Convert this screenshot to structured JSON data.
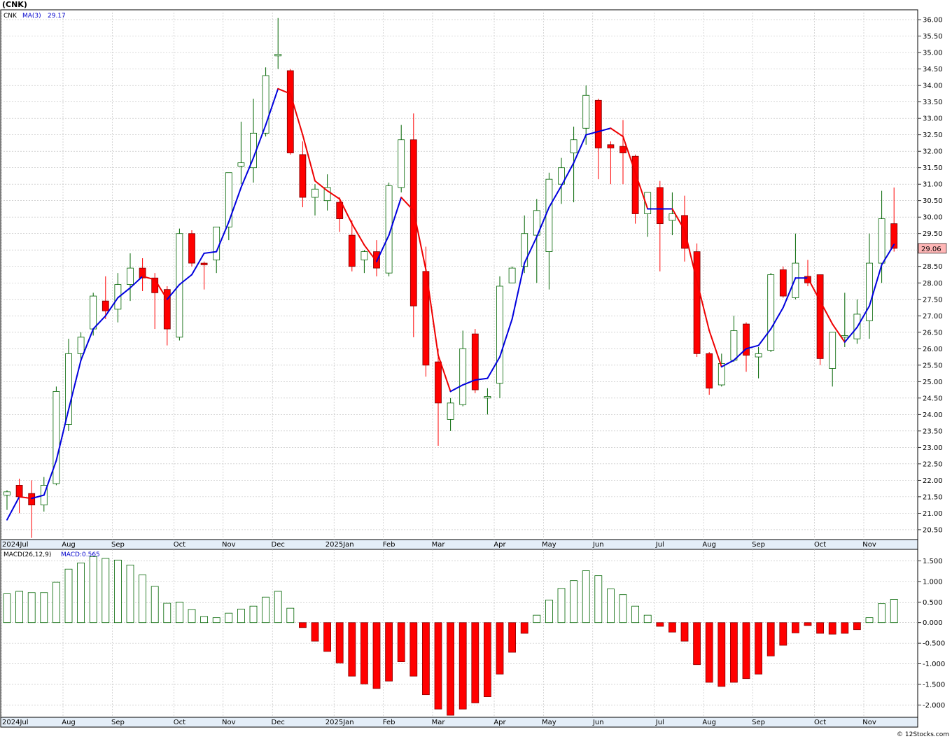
{
  "title": "(CNK)",
  "legend": {
    "symbol": "CNK",
    "ma_label": "MA(3)",
    "ma_value": "29.17",
    "macd_label": "MACD(26,12,9)",
    "macd_value_label": "MACD:0.565"
  },
  "last_price_label": "29.06",
  "footer": "© 12Stocks.com",
  "colors": {
    "up": "#006400",
    "down": "#ff0000",
    "ma_up": "#0000dd",
    "ma_down": "#ee0000",
    "price_tag_bg": "#ffb6b6",
    "grid": "#bbbbbb",
    "axis": "#000000"
  },
  "chart_data": [
    {
      "type": "candlestick",
      "grid": true,
      "y_axis": "right",
      "ylim": [
        20.2,
        36.3
      ],
      "y_ticks": [
        "36.00",
        "35.50",
        "35.00",
        "34.50",
        "34.00",
        "33.50",
        "33.00",
        "32.50",
        "32.00",
        "31.50",
        "31.00",
        "30.50",
        "30.00",
        "29.50",
        "29.00",
        "28.50",
        "28.00",
        "27.50",
        "27.00",
        "26.50",
        "26.00",
        "25.50",
        "25.00",
        "24.50",
        "24.00",
        "23.50",
        "23.00",
        "22.50",
        "22.00",
        "21.50",
        "21.00",
        "20.50"
      ],
      "x_labels": [
        {
          "i": 0,
          "label": "2024Jul"
        },
        {
          "i": 5,
          "label": "Aug"
        },
        {
          "i": 9,
          "label": "Sep"
        },
        {
          "i": 14,
          "label": "Oct"
        },
        {
          "i": 18,
          "label": "Nov"
        },
        {
          "i": 22,
          "label": "Dec"
        },
        {
          "i": 27,
          "label": "2025Jan"
        },
        {
          "i": 31,
          "label": "Feb"
        },
        {
          "i": 35,
          "label": "Mar"
        },
        {
          "i": 40,
          "label": "Apr"
        },
        {
          "i": 44,
          "label": "May"
        },
        {
          "i": 48,
          "label": "Jun"
        },
        {
          "i": 53,
          "label": "Jul"
        },
        {
          "i": 57,
          "label": "Aug"
        },
        {
          "i": 61,
          "label": "Sep"
        },
        {
          "i": 66,
          "label": "Oct"
        },
        {
          "i": 70,
          "label": "Nov"
        }
      ],
      "candles": [
        {
          "o": 21.55,
          "h": 21.7,
          "l": 21.1,
          "c": 21.65
        },
        {
          "o": 21.85,
          "h": 22.05,
          "l": 21.0,
          "c": 21.5
        },
        {
          "o": 21.6,
          "h": 22.0,
          "l": 20.25,
          "c": 21.25
        },
        {
          "o": 21.25,
          "h": 22.1,
          "l": 21.05,
          "c": 21.85
        },
        {
          "o": 21.9,
          "h": 24.85,
          "l": 21.85,
          "c": 24.7
        },
        {
          "o": 23.7,
          "h": 26.3,
          "l": 23.5,
          "c": 25.85
        },
        {
          "o": 25.85,
          "h": 26.5,
          "l": 25.65,
          "c": 26.35
        },
        {
          "o": 26.6,
          "h": 27.7,
          "l": 26.4,
          "c": 27.6
        },
        {
          "o": 27.45,
          "h": 28.2,
          "l": 26.9,
          "c": 27.15
        },
        {
          "o": 27.2,
          "h": 28.3,
          "l": 26.8,
          "c": 27.95
        },
        {
          "o": 27.95,
          "h": 28.9,
          "l": 27.45,
          "c": 28.45
        },
        {
          "o": 28.45,
          "h": 28.75,
          "l": 27.75,
          "c": 28.15
        },
        {
          "o": 28.15,
          "h": 28.3,
          "l": 26.6,
          "c": 27.7
        },
        {
          "o": 27.8,
          "h": 27.9,
          "l": 26.1,
          "c": 26.6
        },
        {
          "o": 26.35,
          "h": 29.65,
          "l": 26.25,
          "c": 29.5
        },
        {
          "o": 29.5,
          "h": 29.6,
          "l": 28.5,
          "c": 28.6
        },
        {
          "o": 28.6,
          "h": 28.65,
          "l": 27.8,
          "c": 28.55
        },
        {
          "o": 28.7,
          "h": 29.55,
          "l": 28.3,
          "c": 29.7
        },
        {
          "o": 29.7,
          "h": 31.3,
          "l": 29.3,
          "c": 31.35
        },
        {
          "o": 31.55,
          "h": 32.9,
          "l": 31.0,
          "c": 31.65
        },
        {
          "o": 31.5,
          "h": 33.6,
          "l": 31.05,
          "c": 32.55
        },
        {
          "o": 32.55,
          "h": 34.55,
          "l": 32.45,
          "c": 34.3
        },
        {
          "o": 34.9,
          "h": 36.05,
          "l": 34.5,
          "c": 34.95
        },
        {
          "o": 34.45,
          "h": 34.5,
          "l": 31.9,
          "c": 31.95
        },
        {
          "o": 31.9,
          "h": 32.3,
          "l": 30.3,
          "c": 30.6
        },
        {
          "o": 30.6,
          "h": 31.0,
          "l": 30.05,
          "c": 30.85
        },
        {
          "o": 30.5,
          "h": 31.3,
          "l": 30.2,
          "c": 30.9
        },
        {
          "o": 30.45,
          "h": 30.6,
          "l": 29.55,
          "c": 29.95
        },
        {
          "o": 29.45,
          "h": 29.9,
          "l": 28.35,
          "c": 28.5
        },
        {
          "o": 28.7,
          "h": 29.0,
          "l": 28.3,
          "c": 28.95
        },
        {
          "o": 28.95,
          "h": 29.3,
          "l": 28.2,
          "c": 28.45
        },
        {
          "o": 28.3,
          "h": 31.05,
          "l": 28.2,
          "c": 30.95
        },
        {
          "o": 30.9,
          "h": 32.8,
          "l": 30.75,
          "c": 32.35
        },
        {
          "o": 32.35,
          "h": 33.15,
          "l": 26.35,
          "c": 27.3
        },
        {
          "o": 28.35,
          "h": 29.1,
          "l": 25.15,
          "c": 25.5
        },
        {
          "o": 25.6,
          "h": 26.0,
          "l": 23.05,
          "c": 24.35
        },
        {
          "o": 23.85,
          "h": 24.5,
          "l": 23.5,
          "c": 24.35
        },
        {
          "o": 24.3,
          "h": 26.55,
          "l": 24.25,
          "c": 26.0
        },
        {
          "o": 26.45,
          "h": 26.6,
          "l": 24.65,
          "c": 24.75
        },
        {
          "o": 24.5,
          "h": 24.8,
          "l": 24.0,
          "c": 24.55
        },
        {
          "o": 24.95,
          "h": 28.2,
          "l": 24.5,
          "c": 27.9
        },
        {
          "o": 28.0,
          "h": 28.5,
          "l": 28.0,
          "c": 28.45
        },
        {
          "o": 28.5,
          "h": 30.05,
          "l": 28.3,
          "c": 29.5
        },
        {
          "o": 29.45,
          "h": 30.55,
          "l": 28.0,
          "c": 30.2
        },
        {
          "o": 28.95,
          "h": 31.35,
          "l": 27.8,
          "c": 31.15
        },
        {
          "o": 31.0,
          "h": 31.8,
          "l": 30.4,
          "c": 31.5
        },
        {
          "o": 31.95,
          "h": 32.75,
          "l": 30.45,
          "c": 32.35
        },
        {
          "o": 32.7,
          "h": 34.0,
          "l": 32.2,
          "c": 33.7
        },
        {
          "o": 33.55,
          "h": 33.6,
          "l": 31.15,
          "c": 32.1
        },
        {
          "o": 32.2,
          "h": 32.3,
          "l": 31.0,
          "c": 32.1
        },
        {
          "o": 32.15,
          "h": 32.95,
          "l": 31.0,
          "c": 31.95
        },
        {
          "o": 31.85,
          "h": 31.9,
          "l": 29.8,
          "c": 30.1
        },
        {
          "o": 30.1,
          "h": 30.65,
          "l": 29.4,
          "c": 30.75
        },
        {
          "o": 30.9,
          "h": 31.1,
          "l": 28.35,
          "c": 29.8
        },
        {
          "o": 29.9,
          "h": 30.75,
          "l": 29.45,
          "c": 30.1
        },
        {
          "o": 30.05,
          "h": 30.65,
          "l": 28.65,
          "c": 29.05
        },
        {
          "o": 28.95,
          "h": 29.2,
          "l": 25.75,
          "c": 25.85
        },
        {
          "o": 25.85,
          "h": 25.9,
          "l": 24.6,
          "c": 24.8
        },
        {
          "o": 24.9,
          "h": 25.85,
          "l": 24.85,
          "c": 25.55
        },
        {
          "o": 25.65,
          "h": 27.0,
          "l": 25.6,
          "c": 26.55
        },
        {
          "o": 26.75,
          "h": 26.8,
          "l": 25.3,
          "c": 25.8
        },
        {
          "o": 25.75,
          "h": 26.05,
          "l": 25.1,
          "c": 25.85
        },
        {
          "o": 25.95,
          "h": 28.3,
          "l": 25.9,
          "c": 28.25
        },
        {
          "o": 28.4,
          "h": 28.5,
          "l": 27.55,
          "c": 27.6
        },
        {
          "o": 27.55,
          "h": 29.5,
          "l": 27.5,
          "c": 28.6
        },
        {
          "o": 28.2,
          "h": 28.7,
          "l": 27.9,
          "c": 28.0
        },
        {
          "o": 28.25,
          "h": 28.25,
          "l": 25.5,
          "c": 25.7
        },
        {
          "o": 25.4,
          "h": 26.5,
          "l": 24.85,
          "c": 26.5
        },
        {
          "o": 26.35,
          "h": 27.7,
          "l": 26.05,
          "c": 26.4
        },
        {
          "o": 26.3,
          "h": 27.5,
          "l": 26.15,
          "c": 27.05
        },
        {
          "o": 26.85,
          "h": 29.5,
          "l": 26.3,
          "c": 28.6
        },
        {
          "o": 28.6,
          "h": 30.8,
          "l": 28.0,
          "c": 29.95
        },
        {
          "o": 29.8,
          "h": 30.9,
          "l": 28.95,
          "c": 29.05
        }
      ],
      "ma3": [
        20.8,
        21.5,
        21.45,
        21.55,
        22.6,
        24.15,
        25.65,
        26.6,
        27.0,
        27.55,
        27.85,
        28.2,
        28.1,
        27.5,
        27.95,
        28.25,
        28.9,
        28.95,
        29.85,
        30.9,
        31.8,
        32.8,
        33.9,
        33.75,
        32.5,
        31.1,
        30.8,
        30.55,
        29.8,
        29.15,
        28.65,
        29.45,
        30.6,
        30.2,
        28.4,
        25.8,
        24.7,
        24.9,
        25.05,
        25.1,
        25.75,
        26.9,
        28.6,
        29.4,
        30.3,
        30.95,
        31.65,
        32.5,
        32.6,
        32.7,
        32.45,
        31.35,
        30.25,
        30.25,
        30.25,
        29.6,
        28.05,
        26.55,
        25.45,
        25.65,
        26.0,
        26.1,
        26.6,
        27.25,
        28.15,
        28.15,
        27.45,
        26.75,
        26.2,
        26.65,
        27.3,
        28.55,
        29.17
      ]
    },
    {
      "type": "bar",
      "label": "MACD(26,12,9)",
      "y_axis": "right",
      "ylim": [
        -2.3,
        1.78
      ],
      "y_ticks": [
        "1.500",
        "1.000",
        "0.500",
        "0.000",
        "-0.500",
        "-1.000",
        "-1.500",
        "-2.000"
      ],
      "values": [
        0.7,
        0.76,
        0.73,
        0.73,
        0.98,
        1.3,
        1.45,
        1.6,
        1.56,
        1.52,
        1.4,
        1.16,
        0.88,
        0.47,
        0.5,
        0.32,
        0.15,
        0.12,
        0.23,
        0.33,
        0.4,
        0.62,
        0.76,
        0.35,
        -0.12,
        -0.45,
        -0.7,
        -0.98,
        -1.3,
        -1.49,
        -1.6,
        -1.42,
        -0.95,
        -1.3,
        -1.75,
        -2.1,
        -2.25,
        -2.1,
        -1.95,
        -1.8,
        -1.25,
        -0.72,
        -0.26,
        0.18,
        0.55,
        0.83,
        1.02,
        1.26,
        1.14,
        0.82,
        0.68,
        0.4,
        0.18,
        -0.09,
        -0.23,
        -0.45,
        -1.02,
        -1.45,
        -1.55,
        -1.45,
        -1.36,
        -1.25,
        -0.81,
        -0.55,
        -0.25,
        -0.07,
        -0.26,
        -0.28,
        -0.26,
        -0.17,
        0.12,
        0.46,
        0.565
      ]
    }
  ]
}
